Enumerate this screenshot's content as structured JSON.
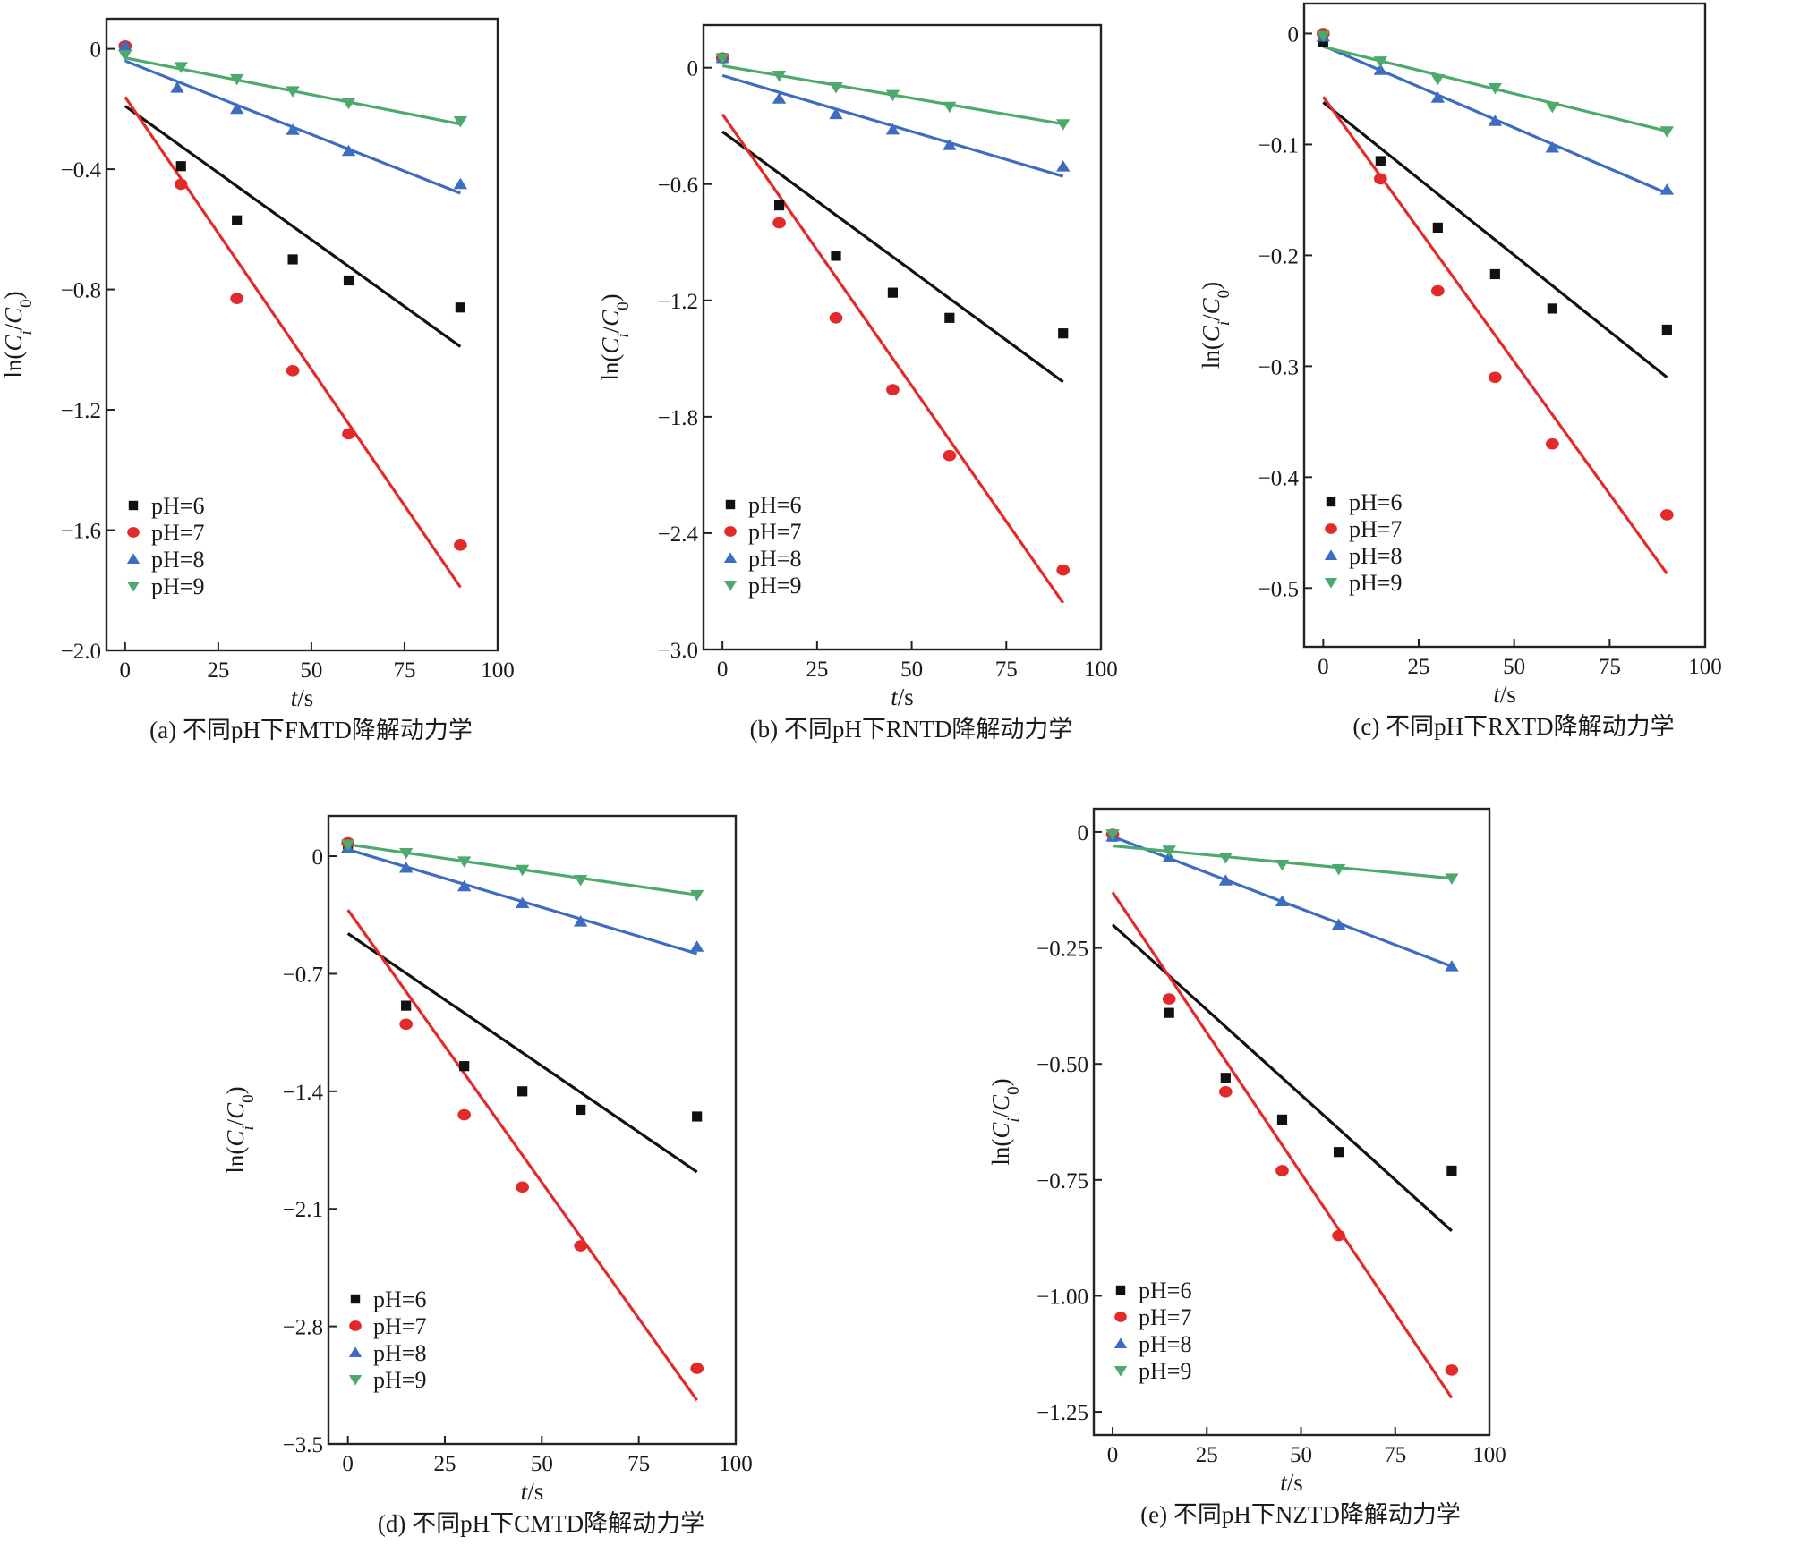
{
  "chart_data": [
    {
      "type": "scatter",
      "caption": "(a) 不同pH下FMTD降解动力学",
      "xlabel": "t/s",
      "ylabel": "ln(Ci/C0)",
      "xlim": [
        -5,
        100
      ],
      "ylim": [
        -2.0,
        0.1
      ],
      "xticks": [
        0,
        25,
        50,
        75,
        100
      ],
      "yticks": [
        0,
        -0.4,
        -0.8,
        -1.2,
        -1.6,
        -2.0
      ],
      "ytick_labels": [
        "0",
        "−0.4",
        "−0.8",
        "−1.2",
        "−1.6",
        "−2.0"
      ],
      "grid": false,
      "legend_position": "bottom-left",
      "series": [
        {
          "name": "pH=6",
          "marker": "square",
          "color": "#111111",
          "x": [
            15,
            30,
            45,
            60,
            90
          ],
          "y": [
            -0.39,
            -0.57,
            -0.7,
            -0.77,
            -0.86
          ],
          "fit": {
            "x": [
              0,
              90
            ],
            "y": [
              -0.19,
              -0.99
            ]
          }
        },
        {
          "name": "pH=7",
          "marker": "circle",
          "color": "#e32a2a",
          "x": [
            0,
            15,
            30,
            45,
            60,
            90
          ],
          "y": [
            0.01,
            -0.45,
            -0.83,
            -1.07,
            -1.28,
            -1.65
          ],
          "fit": {
            "x": [
              0,
              90
            ],
            "y": [
              -0.16,
              -1.79
            ]
          }
        },
        {
          "name": "pH=8",
          "marker": "triangle-up",
          "color": "#3d6cc0",
          "x": [
            0,
            14,
            30,
            45,
            60,
            90
          ],
          "y": [
            0.01,
            -0.13,
            -0.2,
            -0.27,
            -0.34,
            -0.45
          ],
          "fit": {
            "x": [
              0,
              90
            ],
            "y": [
              -0.04,
              -0.48
            ]
          }
        },
        {
          "name": "pH=9",
          "marker": "triangle-down",
          "color": "#4caa6c",
          "x": [
            0,
            15,
            30,
            45,
            60,
            90
          ],
          "y": [
            -0.02,
            -0.06,
            -0.1,
            -0.14,
            -0.18,
            -0.24
          ],
          "fit": {
            "x": [
              0,
              90
            ],
            "y": [
              -0.03,
              -0.25
            ]
          }
        }
      ]
    },
    {
      "type": "scatter",
      "caption": "(b) 不同pH下RNTD降解动力学",
      "xlabel": "t/s",
      "ylabel": "ln(Ci/C0)",
      "xlim": [
        -5,
        100
      ],
      "ylim": [
        -3.0,
        0.22
      ],
      "xticks": [
        0,
        25,
        50,
        75,
        100
      ],
      "yticks": [
        0,
        -0.6,
        -1.2,
        -1.8,
        -2.4,
        -3.0
      ],
      "ytick_labels": [
        "0",
        "−0.6",
        "−1.2",
        "−1.8",
        "−2.4",
        "−3.0"
      ],
      "grid": false,
      "legend_position": "bottom-left",
      "series": [
        {
          "name": "pH=6",
          "marker": "square",
          "color": "#111111",
          "x": [
            0,
            15,
            30,
            45,
            60,
            90
          ],
          "y": [
            0.05,
            -0.71,
            -0.97,
            -1.16,
            -1.29,
            -1.37
          ],
          "fit": {
            "x": [
              0,
              90
            ],
            "y": [
              -0.33,
              -1.62
            ]
          }
        },
        {
          "name": "pH=7",
          "marker": "circle",
          "color": "#e32a2a",
          "x": [
            0,
            15,
            30,
            45,
            60,
            90
          ],
          "y": [
            0.05,
            -0.8,
            -1.29,
            -1.66,
            -2.0,
            -2.59
          ],
          "fit": {
            "x": [
              0,
              90
            ],
            "y": [
              -0.24,
              -2.76
            ]
          }
        },
        {
          "name": "pH=8",
          "marker": "triangle-up",
          "color": "#3d6cc0",
          "x": [
            0,
            15,
            30,
            45,
            60,
            90
          ],
          "y": [
            0.05,
            -0.16,
            -0.24,
            -0.32,
            -0.4,
            -0.51
          ],
          "fit": {
            "x": [
              0,
              90
            ],
            "y": [
              -0.04,
              -0.56
            ]
          }
        },
        {
          "name": "pH=9",
          "marker": "triangle-down",
          "color": "#4caa6c",
          "x": [
            0,
            15,
            30,
            45,
            60,
            90
          ],
          "y": [
            0.05,
            -0.04,
            -0.1,
            -0.14,
            -0.2,
            -0.29
          ],
          "fit": {
            "x": [
              0,
              90
            ],
            "y": [
              0.01,
              -0.29
            ]
          }
        }
      ]
    },
    {
      "type": "scatter",
      "caption": "(c) 不同pH下RXTD降解动力学",
      "xlabel": "t/s",
      "ylabel": "ln(Ci/C0)",
      "xlim": [
        -5,
        100
      ],
      "ylim": [
        -0.553,
        0.027
      ],
      "xticks": [
        0,
        25,
        50,
        75,
        100
      ],
      "yticks": [
        0,
        -0.1,
        -0.2,
        -0.3,
        -0.4,
        -0.5
      ],
      "ytick_labels": [
        "0",
        "−0.1",
        "−0.2",
        "−0.3",
        "−0.4",
        "−0.5"
      ],
      "grid": false,
      "legend_position": "bottom-left",
      "series": [
        {
          "name": "pH=6",
          "marker": "square",
          "color": "#111111",
          "x": [
            0,
            15,
            30,
            45,
            60,
            90
          ],
          "y": [
            -0.008,
            -0.115,
            -0.175,
            -0.217,
            -0.248,
            -0.267
          ],
          "fit": {
            "x": [
              0,
              90
            ],
            "y": [
              -0.062,
              -0.31
            ]
          }
        },
        {
          "name": "pH=7",
          "marker": "circle",
          "color": "#e32a2a",
          "x": [
            0,
            15,
            30,
            45,
            60,
            90
          ],
          "y": [
            0.0,
            -0.131,
            -0.232,
            -0.31,
            -0.37,
            -0.434
          ],
          "fit": {
            "x": [
              0,
              90
            ],
            "y": [
              -0.057,
              -0.487
            ]
          }
        },
        {
          "name": "pH=8",
          "marker": "triangle-up",
          "color": "#3d6cc0",
          "x": [
            0,
            15,
            30,
            45,
            60,
            90
          ],
          "y": [
            -0.003,
            -0.033,
            -0.058,
            -0.079,
            -0.103,
            -0.141
          ],
          "fit": {
            "x": [
              0,
              90
            ],
            "y": [
              -0.011,
              -0.144
            ]
          }
        },
        {
          "name": "pH=9",
          "marker": "triangle-down",
          "color": "#4caa6c",
          "x": [
            0,
            15,
            30,
            45,
            60,
            90
          ],
          "y": [
            -0.002,
            -0.025,
            -0.041,
            -0.049,
            -0.066,
            -0.088
          ],
          "fit": {
            "x": [
              0,
              90
            ],
            "y": [
              -0.012,
              -0.088
            ]
          }
        }
      ]
    },
    {
      "type": "scatter",
      "caption": "(d) 不同pH下CMTD降解动力学",
      "xlabel": "t/s",
      "ylabel": "ln(Ci/C0)",
      "xlim": [
        -5,
        100
      ],
      "ylim": [
        -3.5,
        0.24
      ],
      "xticks": [
        0,
        25,
        50,
        75,
        100
      ],
      "yticks": [
        0,
        -0.7,
        -1.4,
        -2.1,
        -2.8,
        -3.5
      ],
      "ytick_labels": [
        "0",
        "−0.7",
        "−1.4",
        "−2.1",
        "−2.8",
        "−3.5"
      ],
      "grid": false,
      "legend_position": "bottom-left",
      "series": [
        {
          "name": "pH=6",
          "marker": "square",
          "color": "#111111",
          "x": [
            0,
            15,
            30,
            45,
            60,
            90
          ],
          "y": [
            0.07,
            -0.89,
            -1.25,
            -1.4,
            -1.51,
            -1.55
          ],
          "fit": {
            "x": [
              0,
              90
            ],
            "y": [
              -0.46,
              -1.88
            ]
          }
        },
        {
          "name": "pH=7",
          "marker": "circle",
          "color": "#e32a2a",
          "x": [
            0,
            15,
            30,
            45,
            60,
            90
          ],
          "y": [
            0.08,
            -1.0,
            -1.54,
            -1.97,
            -2.32,
            -3.05
          ],
          "fit": {
            "x": [
              0,
              90
            ],
            "y": [
              -0.32,
              -3.24
            ]
          }
        },
        {
          "name": "pH=8",
          "marker": "triangle-up",
          "color": "#3d6cc0",
          "x": [
            0,
            15,
            30,
            45,
            60,
            90
          ],
          "y": [
            0.05,
            -0.07,
            -0.18,
            -0.28,
            -0.39,
            -0.54
          ],
          "fit": {
            "x": [
              0,
              90
            ],
            "y": [
              0.04,
              -0.58
            ]
          }
        },
        {
          "name": "pH=9",
          "marker": "triangle-down",
          "color": "#4caa6c",
          "x": [
            0,
            15,
            30,
            45,
            60,
            90
          ],
          "y": [
            0.07,
            0.02,
            -0.03,
            -0.08,
            -0.14,
            -0.23
          ],
          "fit": {
            "x": [
              0,
              90
            ],
            "y": [
              0.07,
              -0.23
            ]
          }
        }
      ]
    },
    {
      "type": "scatter",
      "caption": "(e) 不同pH下NZTD降解动力学",
      "xlabel": "t/s",
      "ylabel": "ln(Ci/C0)",
      "xlim": [
        -5,
        100
      ],
      "ylim": [
        -1.3,
        0.05
      ],
      "xticks": [
        0,
        25,
        50,
        75,
        100
      ],
      "yticks": [
        0,
        -0.25,
        -0.5,
        -0.75,
        -1.0,
        -1.25
      ],
      "ytick_labels": [
        "0",
        "−0.25",
        "−0.50",
        "−0.75",
        "−1.00",
        "−1.25"
      ],
      "grid": false,
      "legend_position": "bottom-left",
      "series": [
        {
          "name": "pH=6",
          "marker": "square",
          "color": "#111111",
          "x": [
            0,
            15,
            30,
            45,
            60,
            90
          ],
          "y": [
            -0.01,
            -0.39,
            -0.53,
            -0.62,
            -0.69,
            -0.73
          ],
          "fit": {
            "x": [
              0,
              90
            ],
            "y": [
              -0.2,
              -0.86
            ]
          }
        },
        {
          "name": "pH=7",
          "marker": "circle",
          "color": "#e32a2a",
          "x": [
            0,
            15,
            30,
            45,
            60,
            90
          ],
          "y": [
            -0.005,
            -0.36,
            -0.56,
            -0.73,
            -0.87,
            -1.16
          ],
          "fit": {
            "x": [
              0,
              90
            ],
            "y": [
              -0.13,
              -1.22
            ]
          }
        },
        {
          "name": "pH=8",
          "marker": "triangle-up",
          "color": "#3d6cc0",
          "x": [
            0,
            15,
            30,
            45,
            60,
            90
          ],
          "y": [
            -0.01,
            -0.055,
            -0.105,
            -0.15,
            -0.2,
            -0.29
          ],
          "fit": {
            "x": [
              0,
              90
            ],
            "y": [
              -0.01,
              -0.29
            ]
          }
        },
        {
          "name": "pH=9",
          "marker": "triangle-down",
          "color": "#4caa6c",
          "x": [
            0,
            15,
            30,
            45,
            60,
            90
          ],
          "y": [
            -0.005,
            -0.04,
            -0.055,
            -0.07,
            -0.08,
            -0.1
          ],
          "fit": {
            "x": [
              0,
              90
            ],
            "y": [
              -0.03,
              -0.1
            ]
          }
        }
      ]
    }
  ]
}
